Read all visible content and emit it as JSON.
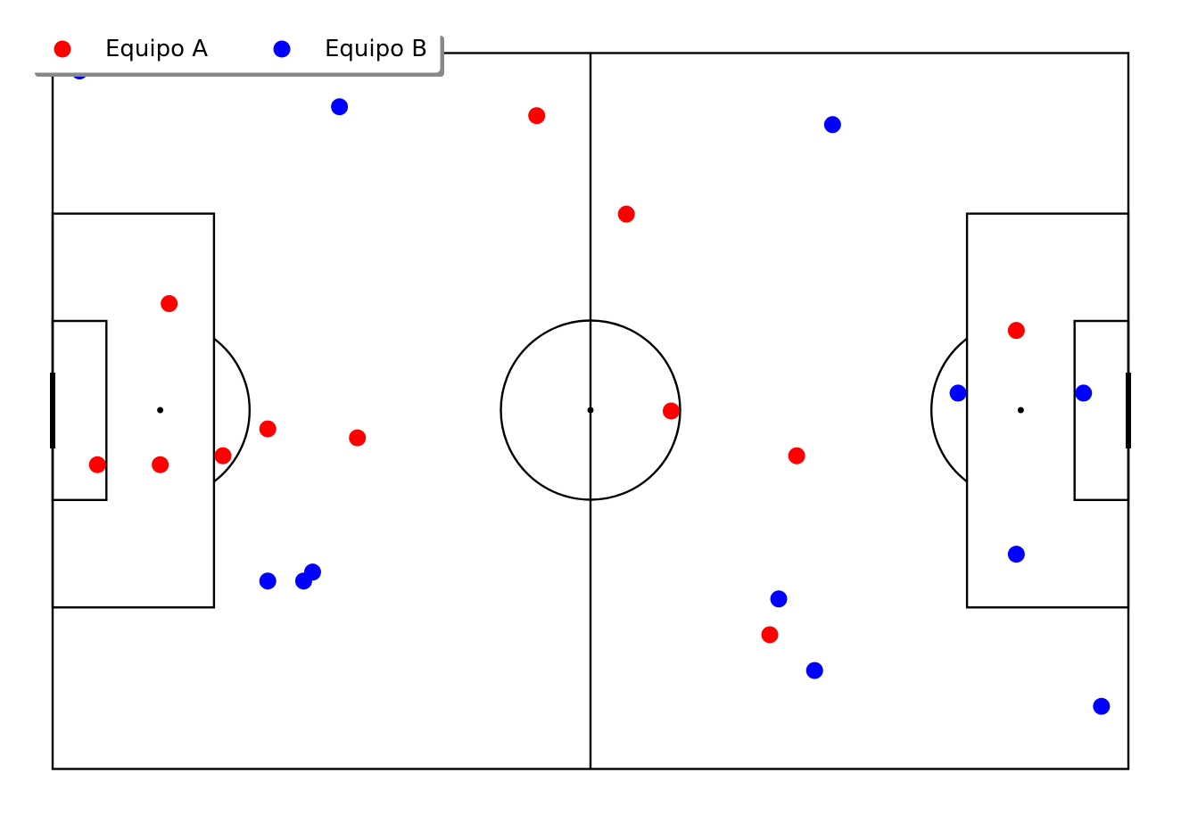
{
  "chart_data": {
    "type": "scatter",
    "title": "",
    "xlabel": "",
    "ylabel": "",
    "grid": false,
    "legend_position": "top-left",
    "xlim": [
      0,
      120
    ],
    "ylim": [
      0,
      80
    ],
    "series": [
      {
        "name": "Equipo A",
        "color": "#ff0000",
        "points": [
          {
            "x": 54,
            "y": 73
          },
          {
            "x": 64,
            "y": 62
          },
          {
            "x": 13,
            "y": 52
          },
          {
            "x": 107.5,
            "y": 49
          },
          {
            "x": 69,
            "y": 40
          },
          {
            "x": 24,
            "y": 38
          },
          {
            "x": 34,
            "y": 37
          },
          {
            "x": 19,
            "y": 35
          },
          {
            "x": 83,
            "y": 35
          },
          {
            "x": 5,
            "y": 34
          },
          {
            "x": 12,
            "y": 34
          },
          {
            "x": 80,
            "y": 15
          }
        ]
      },
      {
        "name": "Equipo B",
        "color": "#0000ff",
        "points": [
          {
            "x": 3,
            "y": 78
          },
          {
            "x": 32,
            "y": 74
          },
          {
            "x": 87,
            "y": 72
          },
          {
            "x": 101,
            "y": 42
          },
          {
            "x": 115,
            "y": 42
          },
          {
            "x": 107.5,
            "y": 24
          },
          {
            "x": 29,
            "y": 22
          },
          {
            "x": 24,
            "y": 21
          },
          {
            "x": 28,
            "y": 21
          },
          {
            "x": 81,
            "y": 19
          },
          {
            "x": 85,
            "y": 11
          },
          {
            "x": 117,
            "y": 7
          }
        ]
      }
    ]
  }
}
